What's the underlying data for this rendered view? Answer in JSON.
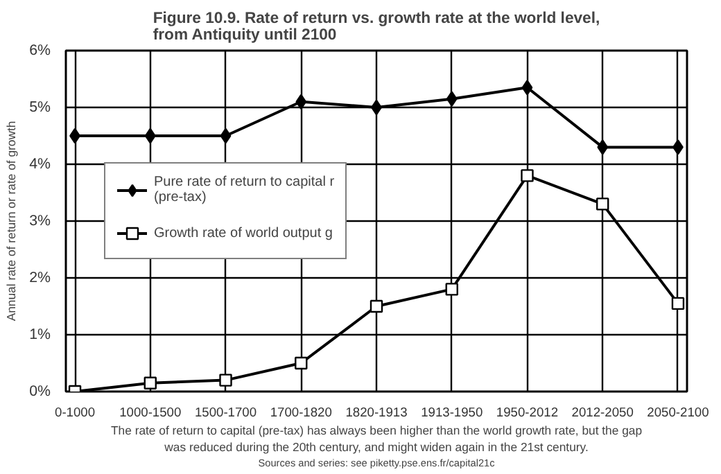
{
  "chart_data": {
    "type": "line",
    "title": "Figure 10.9. Rate of return vs. growth rate at the world level, from Antiquity until 2100",
    "ylabel": "Annual rate of return or rate of growth",
    "categories": [
      "0-1000",
      "1000-1500",
      "1500-1700",
      "1700-1820",
      "1820-1913",
      "1913-1950",
      "1950-2012",
      "2012-2050",
      "2050-2100"
    ],
    "series": [
      {
        "name": "Pure rate of return to capital r (pre-tax)",
        "color": "#000000",
        "marker": "diamond",
        "values": [
          4.5,
          4.5,
          4.5,
          5.1,
          5.0,
          5.15,
          5.35,
          4.3,
          4.3
        ]
      },
      {
        "name": "Growth rate of world output g",
        "color": "#000000",
        "marker": "square",
        "values": [
          0,
          0.15,
          0.2,
          0.5,
          1.5,
          1.8,
          3.8,
          3.3,
          1.55
        ]
      }
    ],
    "ylim": [
      0,
      6
    ],
    "yticks": [
      {
        "value": 0,
        "label": "0%"
      },
      {
        "value": 1,
        "label": "1%"
      },
      {
        "value": 2,
        "label": "2%"
      },
      {
        "value": 3,
        "label": "3%"
      },
      {
        "value": 4,
        "label": "4%"
      },
      {
        "value": 5,
        "label": "5%"
      },
      {
        "value": 6,
        "label": "6%"
      }
    ],
    "grid": true,
    "legend": "left",
    "line_style": "solid",
    "annotations": [
      "The rate of return to capital (pre-tax) has always been higher than the world growth rate, but the gap was reduced during the 20th century, and might widen again in the 21st century.",
      "Sources and series: see piketty.pse.ens.fr/capital21c"
    ]
  }
}
